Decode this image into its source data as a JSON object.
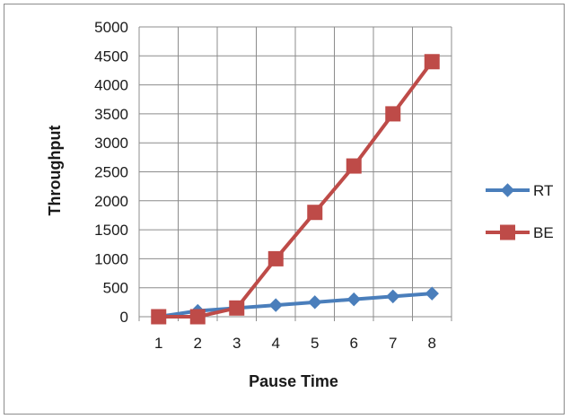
{
  "chart_data": {
    "type": "line",
    "title": "",
    "xlabel": "Pause Time",
    "ylabel": "Throughput",
    "categories": [
      "1",
      "2",
      "3",
      "4",
      "5",
      "6",
      "7",
      "8"
    ],
    "ylim": [
      0,
      5000
    ],
    "yticks": [
      0,
      500,
      1000,
      1500,
      2000,
      2500,
      3000,
      3500,
      4000,
      4500,
      5000
    ],
    "grid": true,
    "legend_position": "right",
    "series": [
      {
        "name": "RT",
        "color": "#4a7ebb",
        "marker": "diamond",
        "values": [
          0,
          100,
          150,
          200,
          250,
          300,
          350,
          400
        ]
      },
      {
        "name": "BE",
        "color": "#be4b48",
        "marker": "square",
        "values": [
          0,
          0,
          150,
          1000,
          1800,
          2600,
          3500,
          4400
        ]
      }
    ]
  }
}
